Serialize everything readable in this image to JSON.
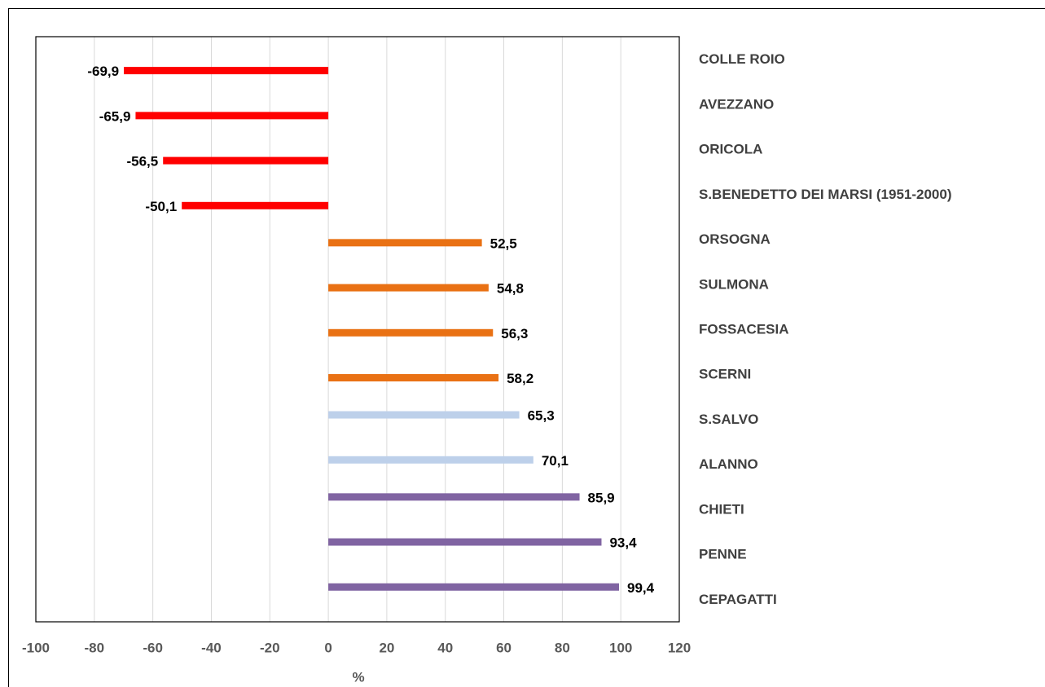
{
  "chart_data": {
    "type": "bar",
    "orientation": "horizontal",
    "categories": [
      "COLLE ROIO",
      "AVEZZANO",
      "ORICOLA",
      "S.BENEDETTO DEI MARSI (1951-2000)",
      "ORSOGNA",
      "SULMONA",
      "FOSSACESIA",
      "SCERNI",
      "S.SALVO",
      "ALANNO",
      "CHIETI",
      "PENNE",
      "CEPAGATTI"
    ],
    "values": [
      -69.9,
      -65.9,
      -56.5,
      -50.1,
      52.5,
      54.8,
      56.3,
      58.2,
      65.3,
      70.1,
      85.9,
      93.4,
      99.4
    ],
    "value_labels": [
      "-69,9",
      "-65,9",
      "-56,5",
      "-50,1",
      "52,5",
      "54,8",
      "56,3",
      "58,2",
      "65,3",
      "70,1",
      "85,9",
      "93,4",
      "99,4"
    ],
    "colors": [
      "#ff0000",
      "#ff0000",
      "#ff0000",
      "#ff0000",
      "#e97114",
      "#e97114",
      "#e97114",
      "#e97114",
      "#bdd0ea",
      "#bdd0ea",
      "#8064a2",
      "#8064a2",
      "#8064a2"
    ],
    "xlabel": "%",
    "xlim": [
      -100,
      120
    ],
    "xticks": [
      -100,
      -80,
      -60,
      -40,
      -20,
      0,
      20,
      40,
      60,
      80,
      100,
      120
    ],
    "grid": true
  }
}
